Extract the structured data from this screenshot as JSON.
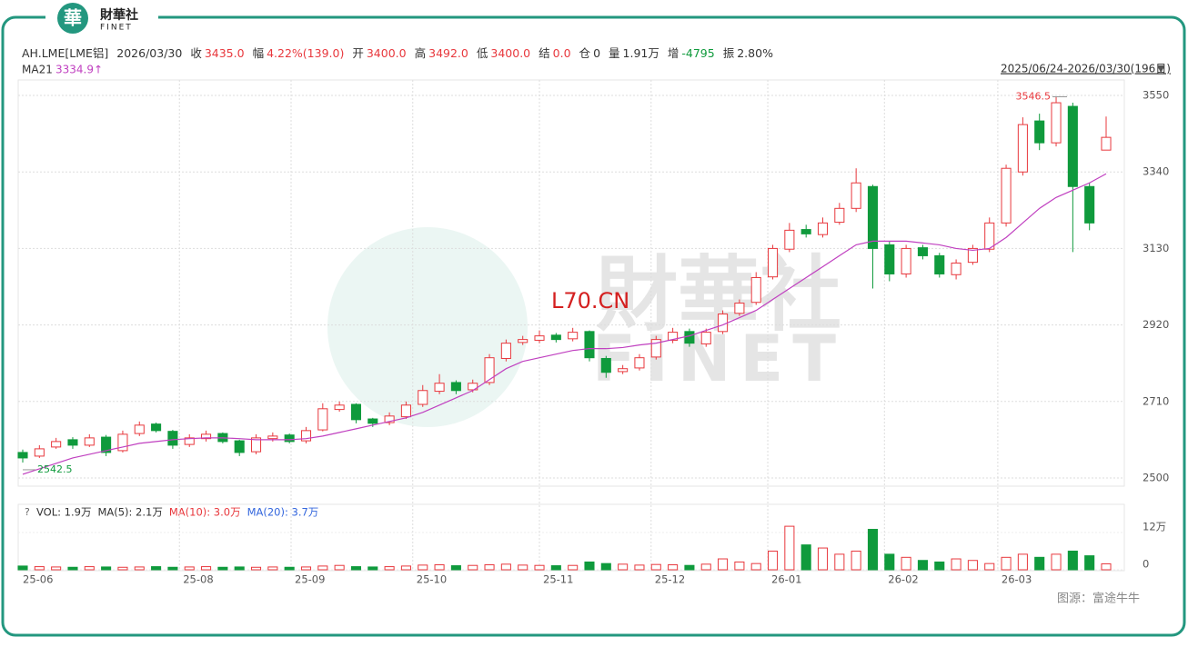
{
  "header": {
    "logo_mark": "華",
    "logo": "財華社",
    "logo_sub": "FINET"
  },
  "watermark": {
    "text": "L70.CN",
    "brand": "財華社",
    "brand_sub": "FINET"
  },
  "source": "图源：富途牛牛",
  "chart_data": {
    "type": "candlestick",
    "symbol_info": [
      {
        "label": "AH.LME[LME铝]",
        "color": "#333"
      },
      {
        "label": "2026/03/30",
        "color": "#333"
      },
      {
        "label": "收",
        "value": "3435.0",
        "color": "#e8383d"
      },
      {
        "label": "幅",
        "value": "4.22%(139.0)",
        "color": "#e8383d"
      },
      {
        "label": "开",
        "value": "3400.0",
        "color": "#e8383d"
      },
      {
        "label": "高",
        "value": "3492.0",
        "color": "#e8383d"
      },
      {
        "label": "低",
        "value": "3400.0",
        "color": "#e8383d"
      },
      {
        "label": "结",
        "value": "0.0",
        "color": "#e8383d"
      },
      {
        "label": "仓",
        "value": "0",
        "color": "#333"
      },
      {
        "label": "量",
        "value": "1.91万",
        "color": "#333"
      },
      {
        "label": "增",
        "value": "-4795",
        "color": "#0f9a3c"
      },
      {
        "label": "振",
        "value": "2.80%",
        "color": "#333"
      }
    ],
    "range_label": "2025/06/24-2026/03/30(196日)",
    "up_color": "#e8383d",
    "down_color": "#0f9a3c",
    "ylim": [
      2477.5,
      3592.5
    ],
    "yticks": [
      3550,
      3340,
      3130,
      2920,
      2710,
      2500
    ],
    "grid": true,
    "xlim": [
      0,
      65
    ],
    "xticks": [
      {
        "value": 0,
        "label": "25-06"
      },
      {
        "value": 9.4,
        "label": "25-08"
      },
      {
        "value": 16.1,
        "label": "25-09"
      },
      {
        "value": 23.4,
        "label": "25-10"
      },
      {
        "value": 31.0,
        "label": "25-11"
      },
      {
        "value": 37.7,
        "label": "25-12"
      },
      {
        "value": 44.7,
        "label": "26-01"
      },
      {
        "value": 51.7,
        "label": "26-02"
      },
      {
        "value": 58.5,
        "label": "26-03"
      }
    ],
    "open": [
      2570,
      2560,
      2585,
      2605,
      2590,
      2612,
      2575,
      2622,
      2648,
      2628,
      2592,
      2608,
      2622,
      2602,
      2572,
      2608,
      2618,
      2602,
      2632,
      2688,
      2702,
      2662,
      2652,
      2668,
      2702,
      2738,
      2762,
      2742,
      2762,
      2828,
      2872,
      2878,
      2892,
      2882,
      2902,
      2828,
      2792,
      2802,
      2832,
      2878,
      2902,
      2868,
      2902,
      2952,
      2982,
      3052,
      3128,
      3182,
      3168,
      3202,
      3240,
      3300,
      3140,
      3060,
      3132,
      3110,
      3058,
      3092,
      3128,
      3200,
      3340,
      3480,
      3420,
      3520,
      3300,
      3400
    ],
    "high": [
      2578,
      2590,
      2610,
      2612,
      2620,
      2618,
      2630,
      2655,
      2652,
      2632,
      2620,
      2630,
      2625,
      2605,
      2620,
      2625,
      2622,
      2640,
      2705,
      2710,
      2705,
      2665,
      2680,
      2710,
      2755,
      2785,
      2768,
      2770,
      2840,
      2880,
      2890,
      2905,
      2898,
      2912,
      2905,
      2835,
      2810,
      2840,
      2890,
      2912,
      2910,
      2910,
      2960,
      2990,
      3065,
      3140,
      3200,
      3195,
      3215,
      3255,
      3350,
      3305,
      3150,
      3140,
      3140,
      3118,
      3100,
      3140,
      3215,
      3360,
      3490,
      3500,
      3546.5,
      3530,
      3310,
      3492
    ],
    "low": [
      2542.5,
      2555,
      2580,
      2580,
      2585,
      2560,
      2570,
      2615,
      2625,
      2580,
      2585,
      2600,
      2595,
      2560,
      2565,
      2600,
      2595,
      2595,
      2628,
      2682,
      2650,
      2640,
      2645,
      2662,
      2695,
      2730,
      2730,
      2735,
      2755,
      2820,
      2865,
      2870,
      2872,
      2875,
      2820,
      2775,
      2785,
      2795,
      2825,
      2870,
      2860,
      2860,
      2895,
      2945,
      2975,
      3045,
      3120,
      3160,
      3160,
      3195,
      3230,
      3020,
      3040,
      3050,
      3100,
      3050,
      3045,
      3085,
      3120,
      3190,
      3330,
      3400,
      3410,
      3120,
      3180,
      3400
    ],
    "close": [
      2555,
      2580,
      2600,
      2590,
      2610,
      2570,
      2620,
      2645,
      2630,
      2590,
      2610,
      2620,
      2600,
      2570,
      2610,
      2615,
      2600,
      2630,
      2690,
      2700,
      2660,
      2650,
      2670,
      2700,
      2740,
      2760,
      2740,
      2760,
      2830,
      2870,
      2880,
      2890,
      2880,
      2900,
      2830,
      2790,
      2800,
      2830,
      2880,
      2900,
      2870,
      2900,
      2950,
      2980,
      3050,
      3130,
      3180,
      3170,
      3200,
      3240,
      3310,
      3130,
      3060,
      3130,
      3110,
      3060,
      3090,
      3130,
      3200,
      3350,
      3470,
      3420,
      3530,
      3300,
      3200,
      3435
    ],
    "ma": {
      "name": "MA21",
      "value_label": "3334.9↑",
      "color": "#c040c0",
      "values": [
        2510,
        2525,
        2540,
        2555,
        2565,
        2575,
        2585,
        2595,
        2600,
        2605,
        2608,
        2610,
        2610,
        2608,
        2605,
        2605,
        2605,
        2608,
        2615,
        2625,
        2635,
        2645,
        2655,
        2665,
        2680,
        2700,
        2720,
        2740,
        2770,
        2800,
        2820,
        2830,
        2840,
        2850,
        2855,
        2855,
        2858,
        2865,
        2870,
        2880,
        2890,
        2905,
        2920,
        2940,
        2960,
        2990,
        3020,
        3050,
        3080,
        3110,
        3140,
        3150,
        3150,
        3150,
        3145,
        3140,
        3130,
        3125,
        3130,
        3160,
        3200,
        3240,
        3270,
        3290,
        3310,
        3334.9
      ]
    },
    "volume": {
      "header": [
        {
          "label": "VOL: 1.9万",
          "color": "#333"
        },
        {
          "label": "MA(5): 2.1万",
          "color": "#333"
        },
        {
          "label": "MA(10): 3.0万",
          "color": "#e8383d"
        },
        {
          "label": "MA(20): 3.7万",
          "color": "#3366dd"
        }
      ],
      "ylim": [
        0,
        152000
      ],
      "yticks": [
        {
          "value": 120000,
          "label": "12万"
        },
        0
      ],
      "values": [
        12000,
        10000,
        9000,
        8000,
        10000,
        9000,
        8000,
        9000,
        10000,
        8000,
        9000,
        10000,
        8000,
        9000,
        8000,
        9000,
        8000,
        9000,
        12000,
        14000,
        10000,
        9000,
        10000,
        12000,
        15000,
        16000,
        13000,
        14000,
        16000,
        18000,
        15000,
        14000,
        13000,
        14000,
        25000,
        20000,
        18000,
        15000,
        17000,
        16000,
        14000,
        18000,
        35000,
        25000,
        20000,
        60000,
        140000,
        80000,
        70000,
        50000,
        60000,
        130000,
        50000,
        40000,
        30000,
        25000,
        35000,
        30000,
        20000,
        40000,
        50000,
        40000,
        50000,
        60000,
        45000,
        19100
      ]
    }
  }
}
